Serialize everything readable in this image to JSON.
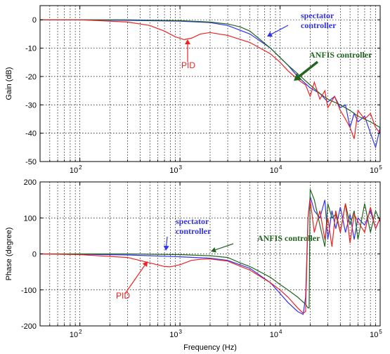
{
  "chart_data": [
    {
      "type": "line",
      "title": "",
      "xlabel": "",
      "ylabel": "Gain (dB)",
      "xscale": "log",
      "xlim": [
        40,
        100000
      ],
      "ylim": [
        -50,
        5
      ],
      "yticks": [
        0,
        -10,
        -20,
        -30,
        -40,
        -50
      ],
      "xticks": [
        {
          "v": 100,
          "m": "2"
        },
        {
          "v": 1000,
          "m": "3"
        },
        {
          "v": 10000,
          "m": "4"
        },
        {
          "v": 100000,
          "m": "5"
        }
      ],
      "grid": true,
      "series": [
        {
          "name": "spectator controller",
          "color": "#3333ee",
          "x": [
            40,
            100,
            300,
            1000,
            2000,
            3000,
            5000,
            8000,
            12000,
            15000,
            20000,
            25000,
            30000,
            35000,
            40000,
            45000,
            50000,
            55000,
            60000,
            70000,
            80000,
            90000,
            100000
          ],
          "y": [
            0,
            0,
            -0.2,
            -0.5,
            -1,
            -2,
            -5,
            -10,
            -16,
            -20,
            -24,
            -26,
            -29,
            -27,
            -31,
            -30,
            -38,
            -33,
            -36,
            -34,
            -40,
            -45,
            -38
          ]
        },
        {
          "name": "ANFIS controller",
          "color": "#226622",
          "x": [
            40,
            100,
            300,
            1000,
            2000,
            3000,
            4000,
            5000,
            8000,
            12000,
            15000,
            20000,
            25000,
            30000,
            40000,
            50000,
            60000,
            80000,
            100000
          ],
          "y": [
            0,
            0,
            0,
            -0.3,
            -0.8,
            -1.5,
            -2.5,
            -4,
            -10,
            -16,
            -19,
            -23,
            -26,
            -28,
            -30,
            -32,
            -34,
            -36,
            -38
          ]
        },
        {
          "name": "PID",
          "color": "#ee2222",
          "x": [
            40,
            100,
            300,
            500,
            700,
            900,
            1100,
            1300,
            1600,
            2000,
            3000,
            5000,
            8000,
            10000,
            12000,
            15000,
            18000,
            20000,
            22000,
            25000,
            28000,
            30000,
            35000,
            40000,
            45000,
            50000,
            55000,
            60000,
            70000,
            80000,
            90000,
            100000
          ],
          "y": [
            0,
            0,
            -0.8,
            -2,
            -4,
            -6,
            -7,
            -6.5,
            -5,
            -4.5,
            -5.5,
            -8,
            -12,
            -15,
            -18,
            -21,
            -23,
            -27,
            -22,
            -28,
            -25,
            -31,
            -27,
            -32,
            -35,
            -38,
            -42,
            -32,
            -35,
            -33,
            -38,
            -40
          ]
        }
      ],
      "annotations": [
        {
          "text": "spectator",
          "color": "#3333ee"
        },
        {
          "text": "controller",
          "color": "#3333ee"
        },
        {
          "text": "ANFIS controller",
          "color": "#226622"
        },
        {
          "text": "PID",
          "color": "#ee2222"
        }
      ]
    },
    {
      "type": "line",
      "title": "",
      "xlabel": "Frequency (Hz)",
      "ylabel": "Phase (degree)",
      "xscale": "log",
      "xlim": [
        40,
        100000
      ],
      "ylim": [
        -200,
        200
      ],
      "yticks": [
        200,
        100,
        0,
        -100,
        -200
      ],
      "xticks": [
        {
          "v": 100,
          "m": "2"
        },
        {
          "v": 1000,
          "m": "3"
        },
        {
          "v": 10000,
          "m": "4"
        },
        {
          "v": 100000,
          "m": "5"
        }
      ],
      "grid": true,
      "series": [
        {
          "name": "spectator controller",
          "color": "#3333ee",
          "x": [
            40,
            100,
            300,
            1000,
            2000,
            3000,
            5000,
            8000,
            10000,
            12000,
            15000,
            17000,
            18000,
            19000,
            20000,
            22000,
            25000,
            28000,
            30000,
            33000,
            36000,
            40000,
            45000,
            50000,
            55000,
            60000,
            70000,
            80000,
            90000,
            100000
          ],
          "y": [
            0,
            -1,
            -3,
            -8,
            -12,
            -18,
            -40,
            -80,
            -110,
            -135,
            -160,
            -168,
            -120,
            100,
            160,
            120,
            100,
            150,
            40,
            120,
            70,
            130,
            60,
            110,
            40,
            100,
            80,
            120,
            70,
            100
          ]
        },
        {
          "name": "ANFIS controller",
          "color": "#226622",
          "x": [
            40,
            100,
            300,
            1000,
            2000,
            3000,
            4000,
            5000,
            8000,
            10000,
            12000,
            15000,
            18000,
            19000,
            19500,
            20000,
            22000,
            25000,
            28000,
            30000,
            33000,
            36000,
            40000,
            45000,
            50000,
            55000,
            60000,
            70000,
            80000,
            90000,
            100000
          ],
          "y": [
            0,
            0,
            0,
            -2,
            -5,
            -10,
            -25,
            -35,
            -65,
            -85,
            -100,
            -120,
            -140,
            -150,
            -150,
            180,
            150,
            80,
            20,
            140,
            100,
            110,
            60,
            140,
            80,
            120,
            40,
            140,
            60,
            120,
            90
          ]
        },
        {
          "name": "PID",
          "color": "#ee2222",
          "x": [
            40,
            100,
            300,
            500,
            700,
            800,
            1000,
            1300,
            1600,
            2000,
            3000,
            5000,
            8000,
            10000,
            12000,
            15000,
            17000,
            18000,
            19000,
            20000,
            22000,
            25000,
            28000,
            30000,
            33000,
            36000,
            40000,
            45000,
            50000,
            55000,
            60000,
            70000,
            80000,
            90000,
            100000
          ],
          "y": [
            0,
            -2,
            -10,
            -25,
            -35,
            -36,
            -30,
            -18,
            -15,
            -14,
            -20,
            -45,
            -80,
            -100,
            -120,
            -150,
            -165,
            -160,
            100,
            150,
            60,
            120,
            40,
            100,
            20,
            120,
            60,
            140,
            30,
            110,
            90,
            60,
            130,
            70,
            100
          ]
        }
      ],
      "annotations": [
        {
          "text": "spectator",
          "color": "#3333ee"
        },
        {
          "text": "controller",
          "color": "#3333ee"
        },
        {
          "text": "ANFIS controller",
          "color": "#226622"
        },
        {
          "text": "PID",
          "color": "#ee2222"
        }
      ]
    }
  ]
}
